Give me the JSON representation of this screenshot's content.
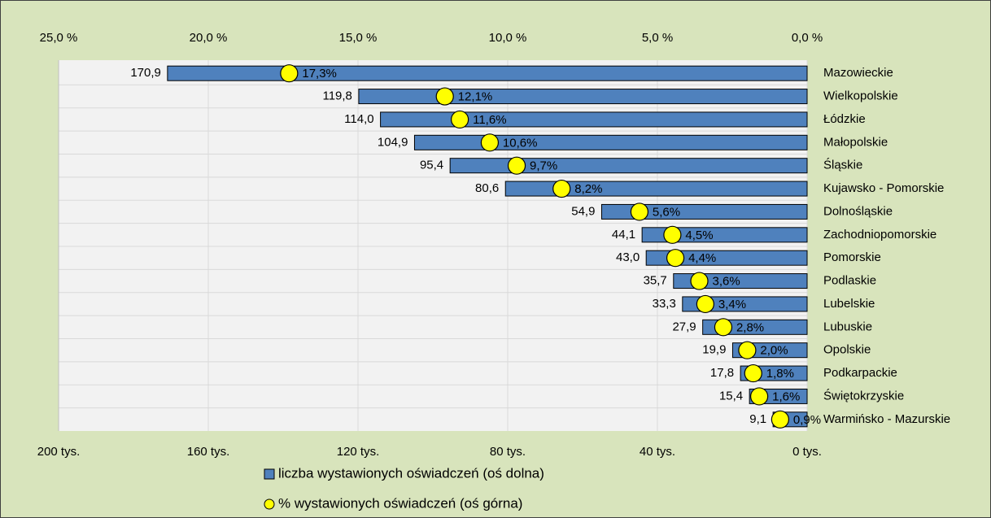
{
  "chart_data": {
    "type": "bar",
    "orientation": "horizontal",
    "categories": [
      "Mazowieckie",
      "Wielkopolskie",
      "Łódzkie",
      "Małopolskie",
      "Śląskie",
      "Kujawsko - Pomorskie",
      "Dolnośląskie",
      "Zachodniopomorskie",
      "Pomorskie",
      "Podlaskie",
      "Lubelskie",
      "Lubuskie",
      "Opolskie",
      "Podkarpackie",
      "Świętokrzyskie",
      "Warmińsko - Mazurskie"
    ],
    "series": [
      {
        "name": "liczba wystawionych oświadczeń (oś dolna)",
        "color": "#4f81bd",
        "axis": "x",
        "values": [
          170.9,
          119.8,
          114.0,
          104.9,
          95.4,
          80.6,
          54.9,
          44.1,
          43.0,
          35.7,
          33.3,
          27.9,
          19.9,
          17.8,
          15.4,
          9.1
        ],
        "value_labels": [
          "170,9",
          "119,8",
          "114,0",
          "104,9",
          "95,4",
          "80,6",
          "54,9",
          "44,1",
          "43,0",
          "35,7",
          "33,3",
          "27,9",
          "19,9",
          "17,8",
          "15,4",
          "9,1"
        ]
      },
      {
        "name": "% wystawionych oświadczeń (oś górna)",
        "color": "#ffff00",
        "axis": "x2",
        "values": [
          17.3,
          12.1,
          11.6,
          10.6,
          9.7,
          8.2,
          5.6,
          4.5,
          4.4,
          3.6,
          3.4,
          2.8,
          2.0,
          1.8,
          1.6,
          0.9
        ],
        "value_labels": [
          "17,3%",
          "12,1%",
          "11,6%",
          "10,6%",
          "9,7%",
          "8,2%",
          "5,6%",
          "4,5%",
          "4,4%",
          "3,6%",
          "3,4%",
          "2,8%",
          "2,0%",
          "1,8%",
          "1,6%",
          "0,9%"
        ]
      }
    ],
    "xlim": [
      200,
      0
    ],
    "xticks": [
      {
        "value": 200,
        "label": "200 tys."
      },
      {
        "value": 160,
        "label": "160 tys."
      },
      {
        "value": 120,
        "label": "120 tys."
      },
      {
        "value": 80,
        "label": "80 tys."
      },
      {
        "value": 40,
        "label": "40 tys."
      },
      {
        "value": 0,
        "label": "0 tys."
      }
    ],
    "x2lim": [
      25,
      0
    ],
    "x2ticks": [
      {
        "value": 25,
        "label": "25,0 %"
      },
      {
        "value": 20,
        "label": "20,0 %"
      },
      {
        "value": 15,
        "label": "15,0 %"
      },
      {
        "value": 10,
        "label": "10,0 %"
      },
      {
        "value": 5,
        "label": "5,0 %"
      },
      {
        "value": 0,
        "label": "0,0 %"
      }
    ],
    "grid": true,
    "legend": "bottom"
  }
}
